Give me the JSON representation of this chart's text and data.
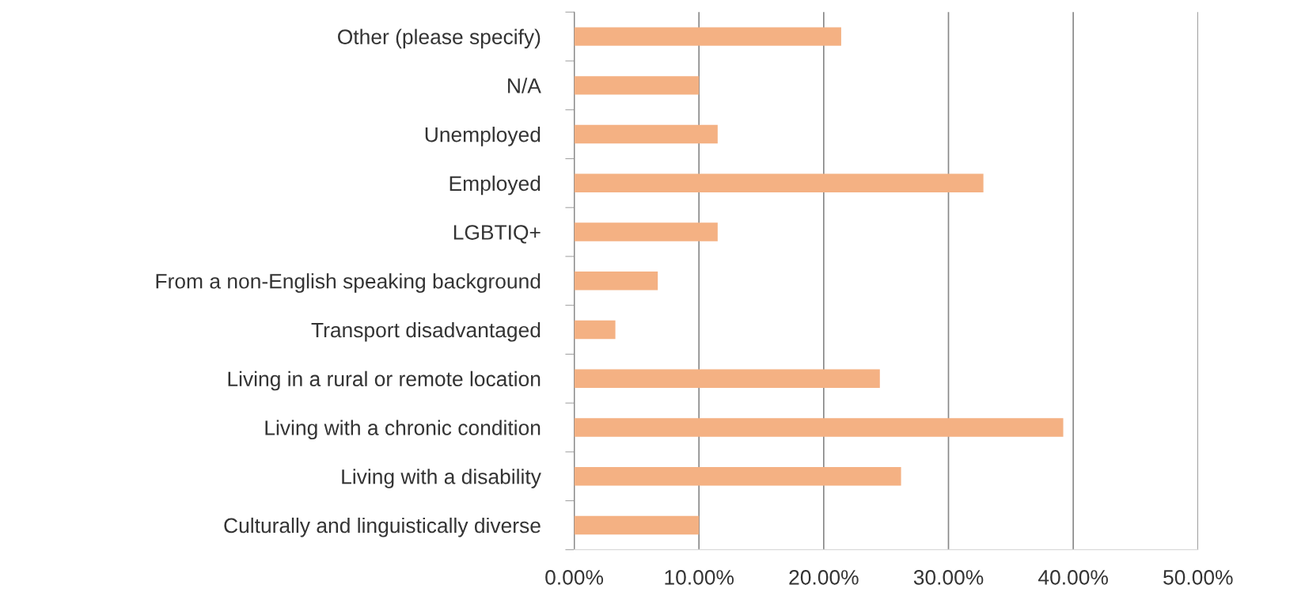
{
  "chart_data": {
    "type": "bar",
    "orientation": "horizontal",
    "categories": [
      "Other (please specify)",
      "N/A",
      "Unemployed",
      "Employed",
      "LGBTIQ+",
      "From a non-English speaking background",
      "Transport disadvantaged",
      "Living in a rural or remote location",
      "Living with a chronic condition",
      "Living with a disability",
      "Culturally and linguistically diverse"
    ],
    "values": [
      21.4,
      10.0,
      11.5,
      32.8,
      11.5,
      6.7,
      3.3,
      24.5,
      39.2,
      26.2,
      10.0
    ],
    "color": "#f4b183",
    "xlim": [
      0,
      50
    ],
    "xticks": [
      {
        "value": 0,
        "label": "0.00%"
      },
      {
        "value": 10,
        "label": "10.00%"
      },
      {
        "value": 20,
        "label": "20.00%"
      },
      {
        "value": 30,
        "label": "30.00%"
      },
      {
        "value": 40,
        "label": "40.00%"
      },
      {
        "value": 50,
        "label": "50.00%"
      }
    ],
    "grid": "x",
    "legend": false
  }
}
